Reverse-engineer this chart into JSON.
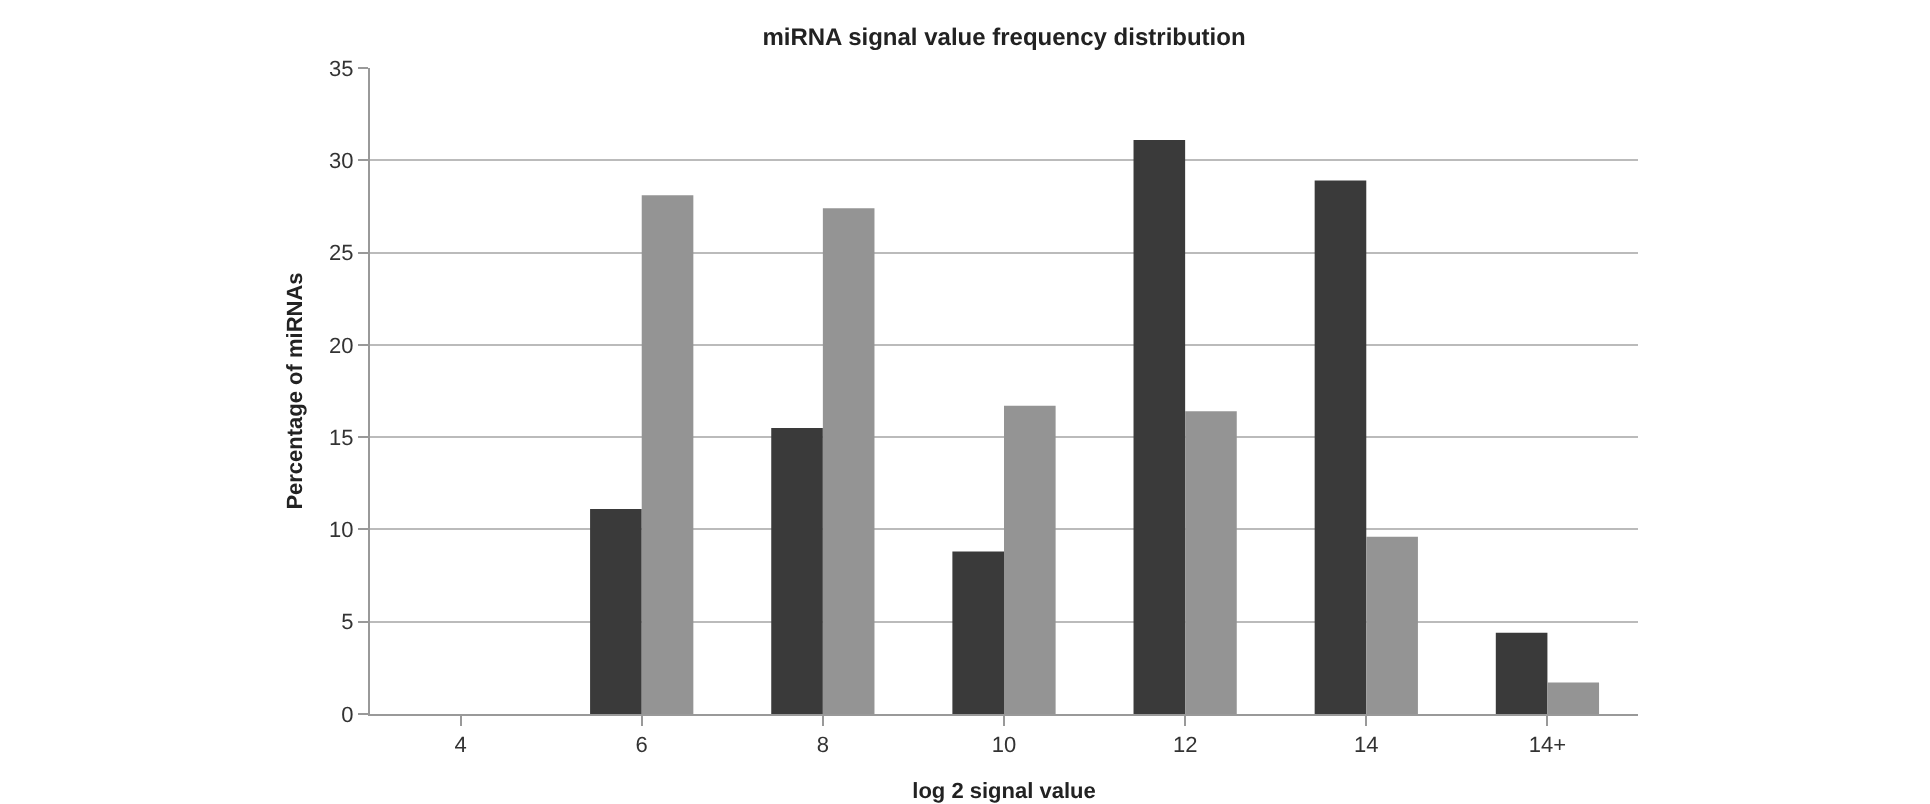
{
  "chart_data": {
    "type": "bar",
    "title": "miRNA signal value frequency distribution",
    "xlabel": "log 2 signal value",
    "ylabel": "Percentage of miRNAs",
    "categories": [
      "4",
      "6",
      "8",
      "10",
      "12",
      "14",
      "14+"
    ],
    "series": [
      {
        "color": "#3a3a3a",
        "values": [
          0,
          11.1,
          15.5,
          8.8,
          31.1,
          28.9,
          4.4
        ]
      },
      {
        "color": "#949494",
        "values": [
          0,
          28.1,
          27.4,
          16.7,
          16.4,
          9.6,
          1.7
        ]
      }
    ],
    "ylim": [
      0,
      35
    ],
    "yticks": [
      0,
      5,
      10,
      15,
      20,
      25,
      30,
      35
    ],
    "grid": "y"
  }
}
